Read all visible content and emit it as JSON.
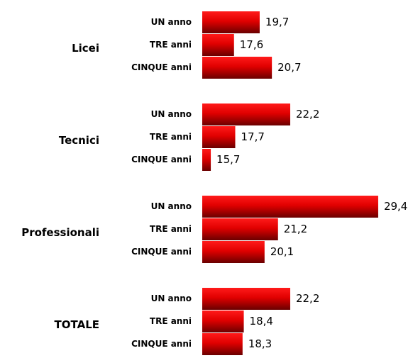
{
  "chart_data": {
    "type": "bar",
    "orientation": "horizontal",
    "categories": [
      "Licei",
      "Tecnici",
      "Professionali",
      "TOTALE"
    ],
    "series": [
      {
        "name": "UN anno",
        "color": "#ff0000",
        "values": [
          19.7,
          22.2,
          29.4,
          22.2
        ],
        "value_labels": [
          "19,7",
          "22,2",
          "29,4",
          "22,2"
        ]
      },
      {
        "name": "TRE anni",
        "color": "#ff0000",
        "values": [
          17.6,
          17.7,
          21.2,
          18.4
        ],
        "value_labels": [
          "17,6",
          "17,7",
          "21,2",
          "18,4"
        ]
      },
      {
        "name": "CINQUE anni",
        "color": "#ff0000",
        "values": [
          20.7,
          15.7,
          20.1,
          18.3
        ],
        "value_labels": [
          "20,7",
          "15,7",
          "20,1",
          "18,3"
        ]
      }
    ],
    "xlim": [
      15,
      30
    ]
  }
}
